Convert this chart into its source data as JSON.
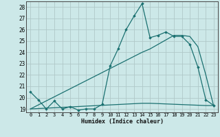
{
  "xlabel": "Humidex (Indice chaleur)",
  "bg_color": "#cce8e8",
  "grid_color": "#b0c8c8",
  "line_color": "#1a7070",
  "xlim": [
    -0.5,
    23.5
  ],
  "ylim": [
    18.7,
    28.5
  ],
  "yticks": [
    19,
    20,
    21,
    22,
    23,
    24,
    25,
    26,
    27,
    28
  ],
  "xticks": [
    0,
    1,
    2,
    3,
    4,
    5,
    6,
    7,
    8,
    9,
    10,
    11,
    12,
    13,
    14,
    15,
    16,
    17,
    18,
    19,
    20,
    21,
    22,
    23
  ],
  "line1_x": [
    0,
    1,
    2,
    3,
    4,
    5,
    6,
    7,
    8,
    9,
    10,
    11,
    12,
    13,
    14,
    15,
    16,
    17,
    18,
    19,
    20,
    21,
    22,
    23
  ],
  "line1_y": [
    20.5,
    19.8,
    19.0,
    19.7,
    19.0,
    19.2,
    18.9,
    19.0,
    19.0,
    19.4,
    22.8,
    24.3,
    26.0,
    27.2,
    28.3,
    25.3,
    25.5,
    25.8,
    25.4,
    25.4,
    24.7,
    22.7,
    19.8,
    19.3
  ],
  "line2_x": [
    0,
    14,
    15,
    22,
    23
  ],
  "line2_y": [
    19.0,
    19.5,
    19.5,
    19.3,
    19.3
  ],
  "line3_x": [
    0,
    14,
    15,
    16,
    17,
    18,
    19,
    20,
    21,
    22,
    23
  ],
  "line3_y": [
    19.0,
    24.0,
    24.3,
    24.7,
    25.1,
    25.5,
    25.5,
    25.4,
    24.5,
    22.0,
    19.2
  ]
}
